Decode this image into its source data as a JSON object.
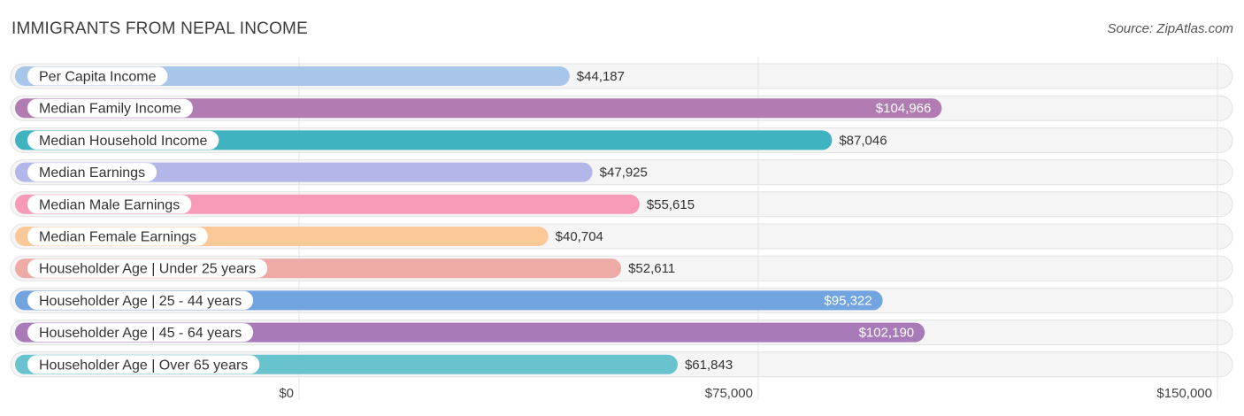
{
  "title": "IMMIGRANTS FROM NEPAL INCOME",
  "source": "Source: ZipAtlas.com",
  "chart_data": {
    "type": "bar",
    "orientation": "horizontal",
    "categories": [
      "Per Capita Income",
      "Median Family Income",
      "Median Household Income",
      "Median Earnings",
      "Median Male Earnings",
      "Median Female Earnings",
      "Householder Age | Under 25 years",
      "Householder Age | 25 - 44 years",
      "Householder Age | 45 - 64 years",
      "Householder Age | Over 65 years"
    ],
    "values": [
      44187,
      104966,
      87046,
      47925,
      55615,
      40704,
      52611,
      95322,
      102190,
      61843
    ],
    "value_labels": [
      "$44,187",
      "$104,966",
      "$87,046",
      "$47,925",
      "$55,615",
      "$40,704",
      "$52,611",
      "$95,322",
      "$102,190",
      "$61,843"
    ],
    "colors": [
      "#a8c6ea",
      "#b07cb2",
      "#3fb3c0",
      "#b2b6e8",
      "#f79ab8",
      "#fbc897",
      "#eeaaa5",
      "#72a5e0",
      "#a87bb8",
      "#68c3cf"
    ],
    "value_label_inside": [
      false,
      true,
      false,
      false,
      false,
      false,
      false,
      true,
      true,
      false
    ],
    "xlim": [
      0,
      150000
    ],
    "ticks": [
      0,
      75000,
      150000
    ],
    "tick_labels": [
      "$0",
      "$75,000",
      "$150,000"
    ],
    "grid": true
  }
}
